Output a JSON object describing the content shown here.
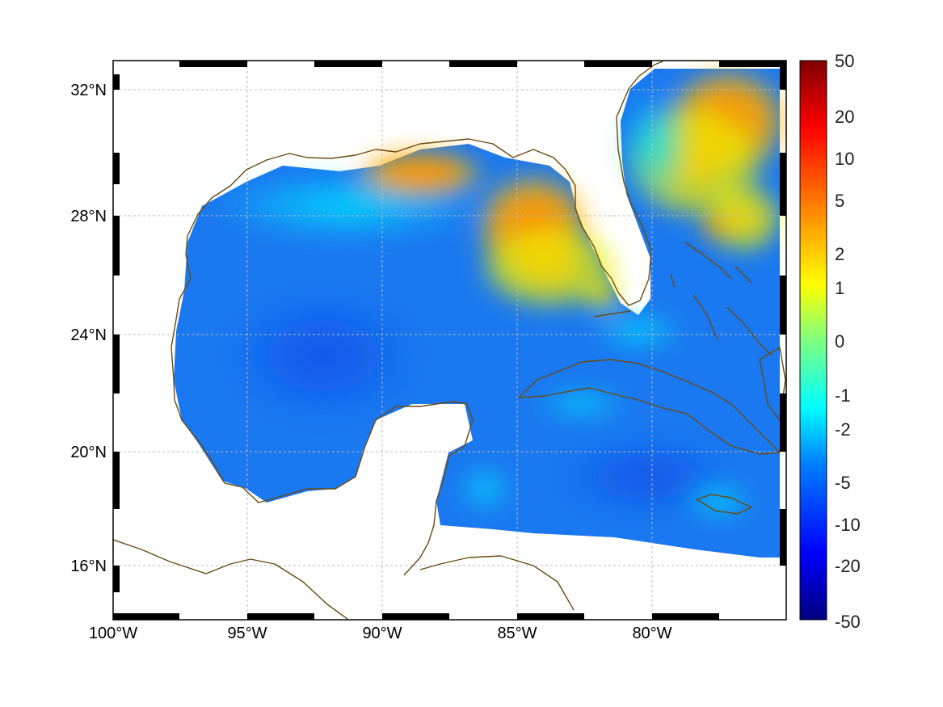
{
  "map": {
    "lon_labels": [
      "100°W",
      "95°W",
      "90°W",
      "85°W",
      "80°W"
    ],
    "lat_labels": [
      "32°N",
      "28°N",
      "24°N",
      "20°N",
      "16°N"
    ]
  },
  "colorbar": {
    "tick_labels": [
      "50",
      "20",
      "10",
      "5",
      "2",
      "1",
      "0",
      "-1",
      "-2",
      "-5",
      "-10",
      "-20",
      "-50"
    ],
    "colors": [
      "#00007f",
      "#0000ff",
      "#0080ff",
      "#00ffff",
      "#80ff80",
      "#ffff00",
      "#ff8000",
      "#ff0000",
      "#7f0000"
    ]
  },
  "colors": {
    "coastline": "#6b4a12",
    "grid": "#bbbbbb",
    "frame": "#000000"
  }
}
